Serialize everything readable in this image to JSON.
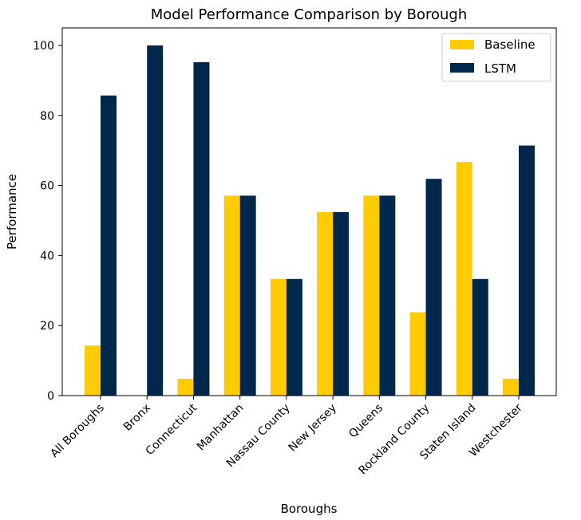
{
  "chart_data": {
    "type": "bar",
    "title": "Model Performance Comparison by Borough",
    "xlabel": "Boroughs",
    "ylabel": "Performance",
    "ylim": [
      0,
      105
    ],
    "yticks": [
      0,
      20,
      40,
      60,
      80,
      100
    ],
    "categories": [
      "All Boroughs",
      "Bronx",
      "Connecticut",
      "Manhattan",
      "Nassau County",
      "New Jersey",
      "Queens",
      "Rockland County",
      "Staten Island",
      "Westchester"
    ],
    "series": [
      {
        "name": "Baseline",
        "color": "#FFCB05",
        "values": [
          14.3,
          0,
          4.8,
          57.1,
          33.3,
          52.4,
          57.1,
          23.8,
          66.7,
          4.8
        ]
      },
      {
        "name": "LSTM",
        "color": "#00274C",
        "values": [
          85.7,
          100,
          95.2,
          57.1,
          33.3,
          52.4,
          57.1,
          61.9,
          33.3,
          71.4
        ]
      }
    ],
    "legend_position": "top-right",
    "grid": false
  }
}
